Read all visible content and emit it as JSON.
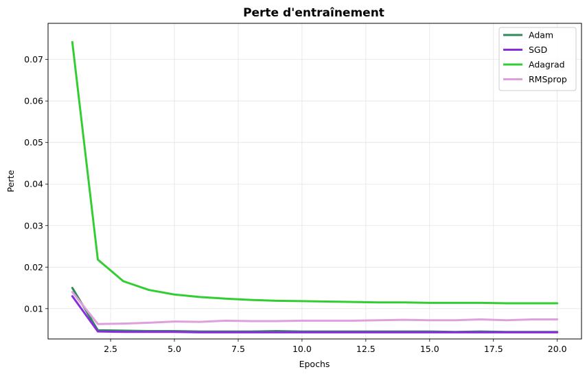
{
  "chart_data": {
    "type": "line",
    "title": "Perte d'entraînement",
    "xlabel": "Epochs",
    "ylabel": "Perte",
    "xlim": [
      0.05,
      20.95
    ],
    "ylim": [
      0.0027,
      0.0787
    ],
    "xticks": [
      2.5,
      5.0,
      7.5,
      10.0,
      12.5,
      15.0,
      17.5,
      20.0
    ],
    "xtick_labels": [
      "2.5",
      "5.0",
      "7.5",
      "10.0",
      "12.5",
      "15.0",
      "17.5",
      "20.0"
    ],
    "yticks": [
      0.01,
      0.02,
      0.03,
      0.04,
      0.05,
      0.06,
      0.07
    ],
    "ytick_labels": [
      "0.01",
      "0.02",
      "0.03",
      "0.04",
      "0.05",
      "0.06",
      "0.07"
    ],
    "grid": true,
    "legend_position": "top-right",
    "x": [
      1,
      2,
      3,
      4,
      5,
      6,
      7,
      8,
      9,
      10,
      11,
      12,
      13,
      14,
      15,
      16,
      17,
      18,
      19,
      20
    ],
    "series": [
      {
        "name": "Adam",
        "color": "#2e8b57",
        "values": [
          0.015,
          0.0048,
          0.0047,
          0.0046,
          0.0046,
          0.0045,
          0.0045,
          0.0045,
          0.0046,
          0.0045,
          0.0045,
          0.0045,
          0.0045,
          0.0045,
          0.0045,
          0.0044,
          0.0045,
          0.0044,
          0.0044,
          0.0044
        ]
      },
      {
        "name": "SGD",
        "color": "#8a2be2",
        "values": [
          0.013,
          0.0045,
          0.0044,
          0.0044,
          0.0044,
          0.0043,
          0.0043,
          0.0043,
          0.0043,
          0.0043,
          0.0043,
          0.0043,
          0.0043,
          0.0043,
          0.0043,
          0.0043,
          0.0043,
          0.0043,
          0.0043,
          0.0043
        ]
      },
      {
        "name": "Adagrad",
        "color": "#32cd32",
        "values": [
          0.0742,
          0.0218,
          0.0166,
          0.0145,
          0.0134,
          0.0128,
          0.0124,
          0.0121,
          0.0119,
          0.0118,
          0.0117,
          0.0116,
          0.0115,
          0.0115,
          0.0114,
          0.0114,
          0.0114,
          0.0113,
          0.0113,
          0.0113
        ]
      },
      {
        "name": "RMSprop",
        "color": "#dda0dd",
        "values": [
          0.014,
          0.0063,
          0.0064,
          0.0066,
          0.0069,
          0.0068,
          0.0071,
          0.007,
          0.007,
          0.0071,
          0.0071,
          0.0071,
          0.0072,
          0.0073,
          0.0072,
          0.0072,
          0.0074,
          0.0072,
          0.0074,
          0.0074
        ]
      }
    ]
  }
}
